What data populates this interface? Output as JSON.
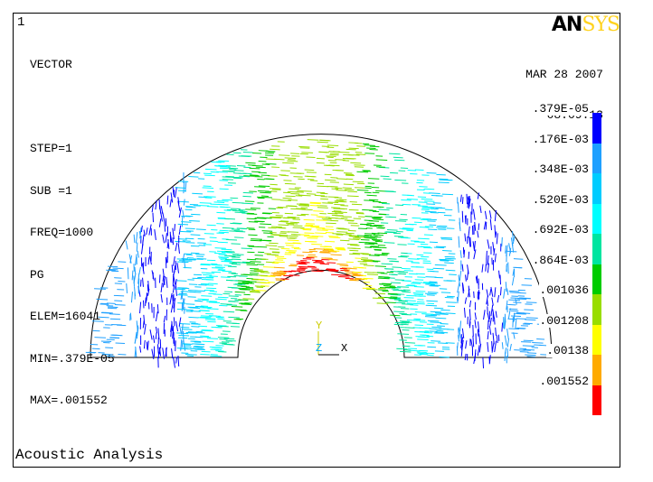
{
  "window_number": "1",
  "logo": {
    "part1": "AN",
    "part2": "SYS"
  },
  "info_lines": [
    "VECTOR",
    "",
    "STEP=1",
    "SUB =1",
    "FREQ=1000",
    "PG",
    "ELEM=16041",
    "MIN=.379E-05",
    "MAX=.001552"
  ],
  "date": "MAR 28 2007",
  "time": "08:09:13",
  "legend": {
    "labels": [
      ".379E-05",
      ".176E-03",
      ".348E-03",
      ".520E-03",
      ".692E-03",
      ".864E-03",
      ".001036",
      ".001208",
      ".00138",
      ".001552"
    ],
    "colors": [
      "#0000ff",
      "#1fa0ff",
      "#00ccff",
      "#00ffff",
      "#00e5a0",
      "#00cc00",
      "#99dd00",
      "#ffff00",
      "#ffaa00",
      "#ff0000"
    ]
  },
  "triad": {
    "y_label": "Y",
    "z_label": "Z",
    "x_label": "X"
  },
  "footer_title": "Acoustic Analysis"
}
